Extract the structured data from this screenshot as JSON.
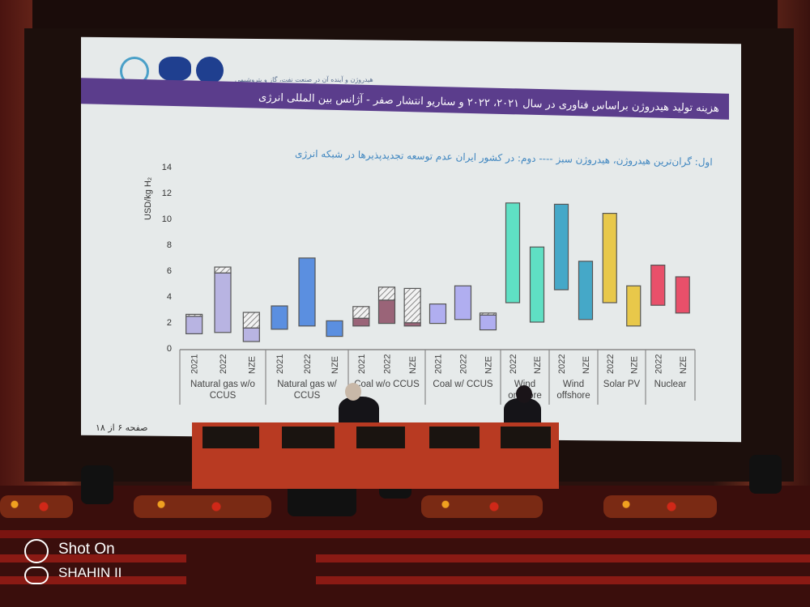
{
  "slide": {
    "logo_subtitle": "هیدروژن و آینده آن در صنعت نفت، گاز و پتروشیمی",
    "title": "هزینه تولید هیدروژن براساس فناوری در سال ۲۰۲۱، ۲۰۲۲ و سناریو انتشار صفر - آژانس بین المللی انرژی",
    "subtitle": "اول: گران‌ترین هیدروژن، هیدروژن سبز ---- دوم: در کشور ایران عدم توسعه تجدیدپذیرها در شبکه انرژی",
    "page_number": "صفحه ۶ از ۱۸",
    "header_color": "#5b3d8c"
  },
  "watermark": {
    "line1": "Shot On",
    "line2": "SHAHIN II"
  },
  "chart_data": {
    "type": "bar",
    "subtype": "floating-range",
    "ylabel": "USD/kg H₂",
    "ylim": [
      0,
      14
    ],
    "yticks": [
      "0",
      "2",
      "4",
      "6",
      "8",
      "10",
      "12",
      "14"
    ],
    "grid": false,
    "groups": [
      {
        "label": "Natural gas w/o CCUS",
        "color": "#b8b4e2",
        "bars": [
          {
            "category": "2021",
            "low": 1.1,
            "high": 2.6,
            "hatch_from": 2.45
          },
          {
            "category": "2022",
            "low": 1.2,
            "high": 6.25,
            "hatch_from": 5.8
          },
          {
            "category": "NZE",
            "low": 0.5,
            "high": 2.75,
            "hatch_from": 1.55
          }
        ]
      },
      {
        "label": "Natural gas w/ CCUS",
        "color": "#5b8fe0",
        "bars": [
          {
            "category": "2021",
            "low": 1.45,
            "high": 3.25
          },
          {
            "category": "2022",
            "low": 1.7,
            "high": 6.95
          },
          {
            "category": "NZE",
            "low": 0.9,
            "high": 2.1
          }
        ]
      },
      {
        "label": "Coal w/o CCUS",
        "color": "#9a6478",
        "bars": [
          {
            "category": "2021",
            "low": 1.7,
            "high": 3.2,
            "hatch_from": 2.3
          },
          {
            "category": "2022",
            "low": 1.9,
            "high": 4.7,
            "hatch_from": 3.7
          },
          {
            "category": "NZE",
            "low": 1.7,
            "high": 4.6,
            "hatch_from": 1.95
          }
        ]
      },
      {
        "label": "Coal w/ CCUS",
        "color": "#b0aef0",
        "bars": [
          {
            "category": "2021",
            "low": 1.9,
            "high": 3.4
          },
          {
            "category": "2022",
            "low": 2.2,
            "high": 4.8
          },
          {
            "category": "NZE",
            "low": 1.4,
            "high": 2.7,
            "hatch_from": 2.55
          }
        ]
      },
      {
        "label": "Wind onshore",
        "color": "#5fe0c4",
        "bars": [
          {
            "category": "2022",
            "low": 3.5,
            "high": 11.2
          },
          {
            "category": "NZE",
            "low": 2.0,
            "high": 7.8
          }
        ]
      },
      {
        "label": "Wind offshore",
        "color": "#45a8c8",
        "bars": [
          {
            "category": "2022",
            "low": 4.5,
            "high": 11.1
          },
          {
            "category": "NZE",
            "low": 2.2,
            "high": 6.7
          }
        ]
      },
      {
        "label": "Solar PV",
        "color": "#e8c84a",
        "bars": [
          {
            "category": "2022",
            "low": 3.5,
            "high": 10.4
          },
          {
            "category": "NZE",
            "low": 1.7,
            "high": 4.8
          }
        ]
      },
      {
        "label": "Nuclear",
        "color": "#e8506a",
        "bars": [
          {
            "category": "2022",
            "low": 3.3,
            "high": 6.4
          },
          {
            "category": "NZE",
            "low": 2.7,
            "high": 5.5
          }
        ]
      }
    ]
  }
}
